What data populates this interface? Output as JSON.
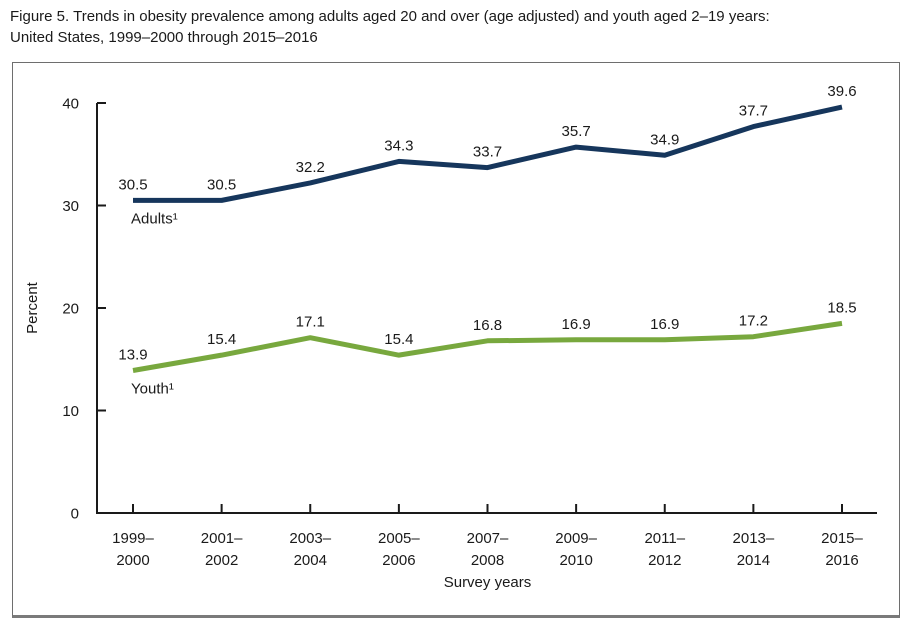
{
  "figure_title": {
    "line1": "Figure 5. Trends in obesity prevalence among adults aged 20 and over (age adjusted) and youth aged 2–19 years:",
    "line2": "United States, 1999–2000 through 2015–2016"
  },
  "chart_data": {
    "type": "line",
    "title": "Figure 5. Trends in obesity prevalence among adults aged 20 and over (age adjusted) and youth aged 2–19 years: United States, 1999–2000 through 2015–2016",
    "categories": [
      "1999–2000",
      "2001–2002",
      "2003–2004",
      "2005–2006",
      "2007–2008",
      "2009–2010",
      "2011–2012",
      "2013–2014",
      "2015–2016"
    ],
    "series": [
      {
        "name": "Adults¹",
        "values": [
          30.5,
          30.5,
          32.2,
          34.3,
          33.7,
          35.7,
          34.9,
          37.7,
          39.6
        ],
        "color": "#16365c"
      },
      {
        "name": "Youth¹",
        "values": [
          13.9,
          15.4,
          17.1,
          15.4,
          16.8,
          16.9,
          16.9,
          17.2,
          18.5
        ],
        "color": "#78a83e"
      }
    ],
    "xlabel": "Survey years",
    "ylabel": "Percent",
    "ylim": [
      0,
      40
    ],
    "yticks": [
      0,
      10,
      20,
      30,
      40
    ],
    "grid": false,
    "legend_position": "inline-series-labels",
    "axis_color": "#1a1a1a"
  }
}
